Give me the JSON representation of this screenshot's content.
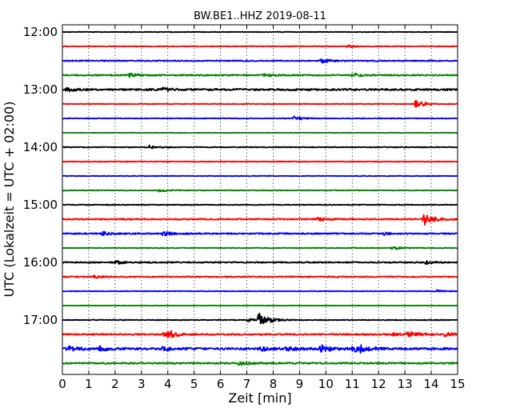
{
  "chart_data": {
    "type": "line",
    "title": "BW.BE1..HHZ 2019-08-11",
    "xlabel": "Zeit  [min]",
    "ylabel": "UTC (Lokalzeit = UTC + 02:00)",
    "xlim": [
      0,
      15
    ],
    "x_ticks": [
      0,
      1,
      2,
      3,
      4,
      5,
      6,
      7,
      8,
      9,
      10,
      11,
      12,
      13,
      14,
      15
    ],
    "x_grid": "dotted",
    "y_tick_labels": [
      "12:00",
      "13:00",
      "14:00",
      "15:00",
      "16:00",
      "17:00"
    ],
    "trace_colors": [
      "#000000",
      "#ff0000",
      "#0000ff",
      "#008000"
    ],
    "traces": [
      {
        "start": "12:00",
        "color": "#000000",
        "noise": 0.35,
        "events": []
      },
      {
        "start": "12:15",
        "color": "#ff0000",
        "noise": 0.5,
        "events": [
          {
            "t": 10.8,
            "amp": 1.5
          }
        ]
      },
      {
        "start": "12:30",
        "color": "#0000ff",
        "noise": 0.7,
        "events": [
          {
            "t": 9.8,
            "amp": 2.6
          }
        ]
      },
      {
        "start": "12:45",
        "color": "#008000",
        "noise": 0.8,
        "events": [
          {
            "t": 2.5,
            "amp": 2.3
          },
          {
            "t": 7.6,
            "amp": 1.6
          },
          {
            "t": 11.0,
            "amp": 2.2
          }
        ]
      },
      {
        "start": "13:00",
        "color": "#000000",
        "noise": 1.1,
        "events": [
          {
            "t": 0.1,
            "amp": 2.3
          },
          {
            "t": 3.8,
            "amp": 2.0
          }
        ]
      },
      {
        "start": "13:15",
        "color": "#ff0000",
        "noise": 0.45,
        "events": [
          {
            "t": 13.4,
            "amp": 4.6
          }
        ]
      },
      {
        "start": "13:30",
        "color": "#0000ff",
        "noise": 0.45,
        "events": [
          {
            "t": 8.75,
            "amp": 2.6
          }
        ]
      },
      {
        "start": "13:45",
        "color": "#008000",
        "noise": 0.3,
        "events": []
      },
      {
        "start": "14:00",
        "color": "#000000",
        "noise": 0.45,
        "events": [
          {
            "t": 3.3,
            "amp": 2.0
          }
        ]
      },
      {
        "start": "14:15",
        "color": "#ff0000",
        "noise": 0.45,
        "events": []
      },
      {
        "start": "14:30",
        "color": "#0000ff",
        "noise": 0.4,
        "events": []
      },
      {
        "start": "14:45",
        "color": "#008000",
        "noise": 0.45,
        "events": [
          {
            "t": 3.65,
            "amp": 1.6
          }
        ]
      },
      {
        "start": "15:00",
        "color": "#000000",
        "noise": 0.45,
        "events": []
      },
      {
        "start": "15:15",
        "color": "#ff0000",
        "noise": 0.8,
        "events": [
          {
            "t": 9.7,
            "amp": 2.6
          },
          {
            "t": 13.7,
            "amp": 8.5
          }
        ]
      },
      {
        "start": "15:30",
        "color": "#0000ff",
        "noise": 0.8,
        "events": [
          {
            "t": 1.5,
            "amp": 2.3
          },
          {
            "t": 3.8,
            "amp": 3.0
          },
          {
            "t": 12.2,
            "amp": 1.5
          }
        ]
      },
      {
        "start": "15:45",
        "color": "#008000",
        "noise": 0.45,
        "events": [
          {
            "t": 12.5,
            "amp": 2.2
          }
        ]
      },
      {
        "start": "16:00",
        "color": "#000000",
        "noise": 0.7,
        "events": [
          {
            "t": 2.0,
            "amp": 2.0
          },
          {
            "t": 13.8,
            "amp": 1.9
          }
        ]
      },
      {
        "start": "16:15",
        "color": "#ff0000",
        "noise": 0.7,
        "events": [
          {
            "t": 1.2,
            "amp": 2.0
          }
        ]
      },
      {
        "start": "16:30",
        "color": "#0000ff",
        "noise": 0.4,
        "events": [
          {
            "t": 14.2,
            "amp": 1.3
          }
        ]
      },
      {
        "start": "16:45",
        "color": "#008000",
        "noise": 0.3,
        "events": []
      },
      {
        "start": "17:00",
        "color": "#000000",
        "noise": 0.45,
        "events": [
          {
            "t": 7.0,
            "amp": 1.8
          },
          {
            "t": 7.45,
            "amp": 9.5
          }
        ]
      },
      {
        "start": "17:15",
        "color": "#ff0000",
        "noise": 0.9,
        "events": [
          {
            "t": 4.0,
            "amp": 3.0
          },
          {
            "t": 3.85,
            "amp": 3.0
          },
          {
            "t": 12.5,
            "amp": 2.0
          },
          {
            "t": 13.1,
            "amp": 5.0
          },
          {
            "t": 14.5,
            "amp": 2.2
          }
        ]
      },
      {
        "start": "17:30",
        "color": "#0000ff",
        "noise": 1.3,
        "events": [
          {
            "t": 0.2,
            "amp": 3.0
          },
          {
            "t": 1.4,
            "amp": 2.6
          },
          {
            "t": 3.8,
            "amp": 2.2
          },
          {
            "t": 7.4,
            "amp": 3.2
          },
          {
            "t": 8.5,
            "amp": 2.5
          },
          {
            "t": 9.8,
            "amp": 4.6
          },
          {
            "t": 11.0,
            "amp": 4.0
          },
          {
            "t": 11.3,
            "amp": 3.0
          }
        ]
      },
      {
        "start": "17:45",
        "color": "#008000",
        "noise": 0.9,
        "events": [
          {
            "t": 6.7,
            "amp": 2.8
          }
        ]
      }
    ]
  }
}
